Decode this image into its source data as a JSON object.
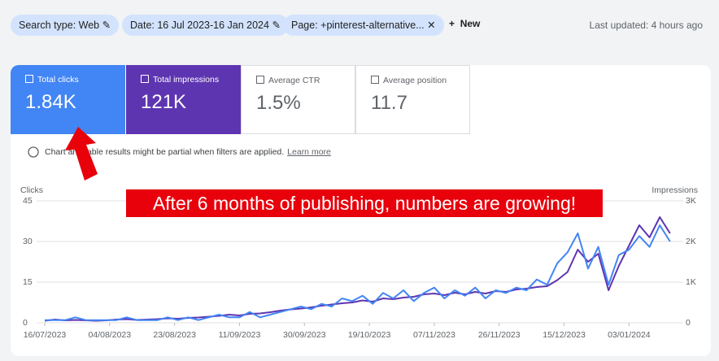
{
  "filters": {
    "chips": [
      "Search type: Web",
      "Date: 16 Jul 2023-16 Jan 2024",
      "Page: +pinterest-alternative..."
    ],
    "new_button": "New",
    "last_updated": "Last updated: 4 hours ago"
  },
  "cards": [
    {
      "label": "Total clicks",
      "value": "1.84K"
    },
    {
      "label": "Total impressions",
      "value": "121K"
    },
    {
      "label": "Average CTR",
      "value": "1.5%"
    },
    {
      "label": "Average position",
      "value": "11.7"
    }
  ],
  "notice": {
    "text": "Chart and table results might be partial when filters are applied.",
    "link": "Learn more"
  },
  "annotation": "After 6 months of publishing, numbers are growing!",
  "chart_data": {
    "type": "line",
    "y_label": "Clicks",
    "y2_label": "Impressions",
    "x": [
      "16/07/2023",
      "19/07/2023",
      "22/07/2023",
      "25/07/2023",
      "28/07/2023",
      "31/07/2023",
      "03/08/2023",
      "06/08/2023",
      "09/08/2023",
      "12/08/2023",
      "15/08/2023",
      "18/08/2023",
      "21/08/2023",
      "24/08/2023",
      "27/08/2023",
      "30/08/2023",
      "02/09/2023",
      "05/09/2023",
      "08/09/2023",
      "11/09/2023",
      "14/09/2023",
      "17/09/2023",
      "20/09/2023",
      "23/09/2023",
      "26/09/2023",
      "29/09/2023",
      "02/10/2023",
      "05/10/2023",
      "08/10/2023",
      "11/10/2023",
      "14/10/2023",
      "17/10/2023",
      "20/10/2023",
      "23/10/2023",
      "26/10/2023",
      "29/10/2023",
      "01/11/2023",
      "04/11/2023",
      "07/11/2023",
      "10/11/2023",
      "13/11/2023",
      "16/11/2023",
      "19/11/2023",
      "22/11/2023",
      "25/11/2023",
      "28/11/2023",
      "01/12/2023",
      "04/12/2023",
      "07/12/2023",
      "10/12/2023",
      "13/12/2023",
      "16/12/2023",
      "19/12/2023",
      "22/12/2023",
      "25/12/2023",
      "28/12/2023",
      "31/12/2023",
      "03/01/2024",
      "06/01/2024",
      "09/01/2024",
      "12/01/2024",
      "15/01/2024"
    ],
    "series": [
      {
        "name": "Clicks",
        "color": "#4285f4",
        "axis": "y",
        "values": [
          1,
          1,
          1,
          2,
          1,
          1,
          1,
          1,
          2,
          1,
          1,
          1,
          2,
          1,
          2,
          1,
          2,
          3,
          2,
          2,
          4,
          2,
          3,
          4,
          5,
          6,
          5,
          7,
          6,
          9,
          8,
          10,
          7,
          11,
          9,
          12,
          8,
          11,
          13,
          9,
          12,
          10,
          13,
          9,
          12,
          11,
          13,
          12,
          16,
          14,
          22,
          26,
          33,
          20,
          28,
          14,
          25,
          27,
          32,
          28,
          36,
          30
        ]
      },
      {
        "name": "Impressions",
        "color": "#5e35b1",
        "axis": "y2",
        "values": [
          50,
          80,
          60,
          70,
          60,
          50,
          60,
          80,
          90,
          70,
          80,
          90,
          110,
          100,
          120,
          130,
          150,
          170,
          200,
          180,
          220,
          230,
          260,
          300,
          330,
          350,
          380,
          420,
          450,
          480,
          500,
          550,
          520,
          600,
          580,
          620,
          640,
          700,
          720,
          680,
          740,
          700,
          760,
          720,
          780,
          760,
          820,
          840,
          880,
          900,
          1050,
          1250,
          1800,
          1500,
          1700,
          800,
          1400,
          1900,
          2400,
          2100,
          2600,
          2200
        ]
      }
    ],
    "xlim": [
      "16/07/2023",
      "16/01/2024"
    ],
    "xticks": [
      "16/07/2023",
      "04/08/2023",
      "23/08/2023",
      "11/09/2023",
      "30/09/2023",
      "19/10/2023",
      "07/11/2023",
      "26/11/2023",
      "15/12/2023",
      "03/01/2024"
    ],
    "ylim": [
      0,
      45
    ],
    "yticks": [
      0,
      15,
      30,
      45
    ],
    "y2lim": [
      0,
      3000
    ],
    "y2ticks": [
      0,
      {
        "value": 1000,
        "label": "1K"
      },
      {
        "value": 2000,
        "label": "2K"
      },
      {
        "value": 3000,
        "label": "3K"
      }
    ],
    "grid": true
  }
}
